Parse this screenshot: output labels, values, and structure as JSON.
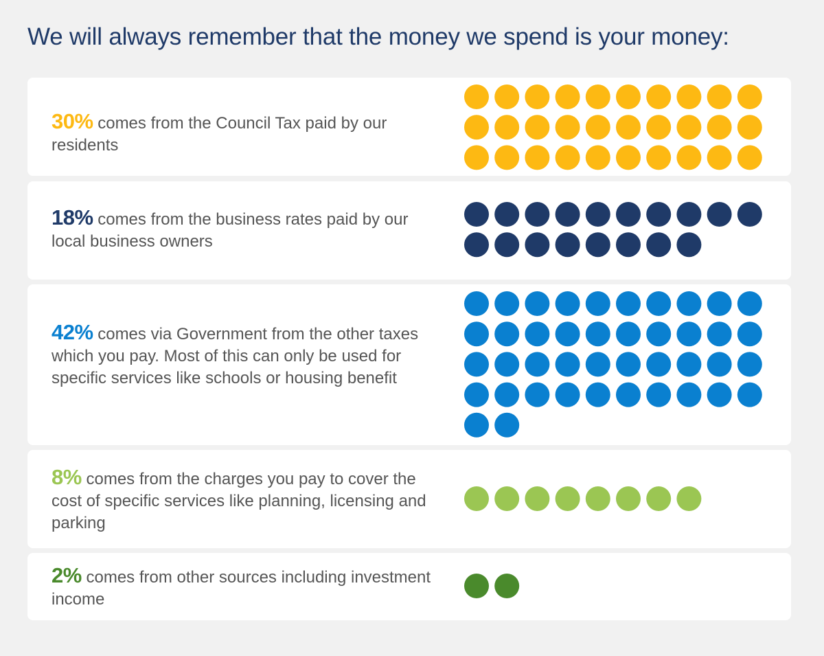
{
  "title": "We will always remember that the money we spend is your money:",
  "chart_data": {
    "type": "waffle",
    "series": [
      {
        "name": "Council Tax",
        "percent": "30%",
        "value": 30,
        "color": "#fdb913",
        "text": " comes from the Council Tax paid by our residents"
      },
      {
        "name": "Business rates",
        "percent": "18%",
        "value": 18,
        "color": "#1f3a68",
        "text": " comes from the business rates paid by our local business owners"
      },
      {
        "name": "Government",
        "percent": "42%",
        "value": 42,
        "color": "#0a80d0",
        "text": " comes via Government from the other taxes which you pay. Most of this can only be used for specific services like schools or housing benefit"
      },
      {
        "name": "Charges",
        "percent": "8%",
        "value": 8,
        "color": "#9bc653",
        "text": " comes from the charges you pay to cover the cost of specific services like planning, licensing and parking"
      },
      {
        "name": "Other sources",
        "percent": "2%",
        "value": 2,
        "color": "#4a8a2c",
        "text": " comes from other sources including investment income"
      }
    ]
  }
}
